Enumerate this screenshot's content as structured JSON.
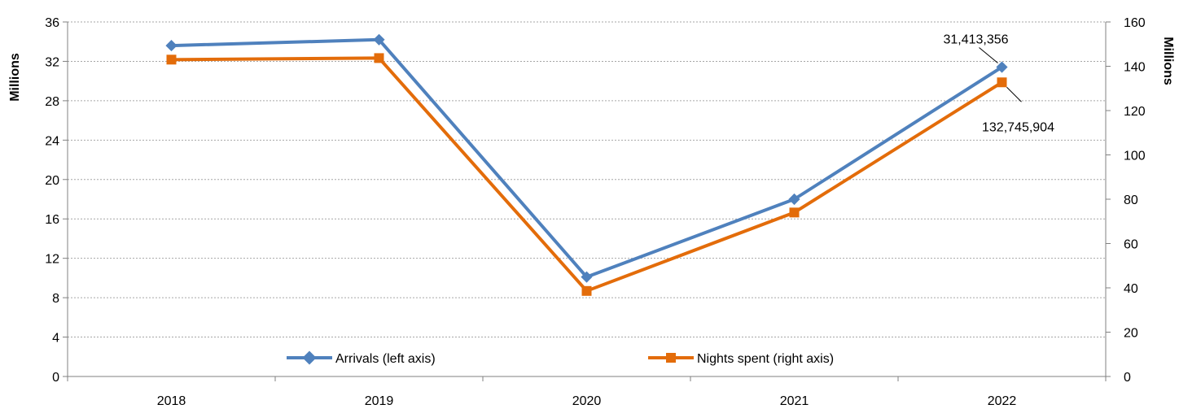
{
  "chart_data": {
    "type": "line",
    "categories": [
      "2018",
      "2019",
      "2020",
      "2021",
      "2022"
    ],
    "y_left": {
      "label": "Millions",
      "min": 0,
      "max": 36,
      "step": 4
    },
    "y_right": {
      "label": "Millions",
      "min": 0,
      "max": 160,
      "step": 20
    },
    "grid": "horizontal-dotted",
    "legend_position": "bottom-inside",
    "series": [
      {
        "name": "Arrivals (left axis)",
        "axis": "left",
        "color": "#4F81BD",
        "marker": "diamond",
        "values": [
          33.6,
          34.2,
          10.1,
          18.0,
          31.413356
        ]
      },
      {
        "name": "Nights spent (right axis)",
        "axis": "right",
        "color": "#E36C0A",
        "marker": "square",
        "values": [
          143.0,
          143.7,
          38.6,
          74.0,
          132.745904
        ]
      }
    ],
    "annotations": [
      {
        "text": "31,413,356",
        "series": 0,
        "index": 4
      },
      {
        "text": "132,745,904",
        "series": 1,
        "index": 4
      }
    ]
  }
}
